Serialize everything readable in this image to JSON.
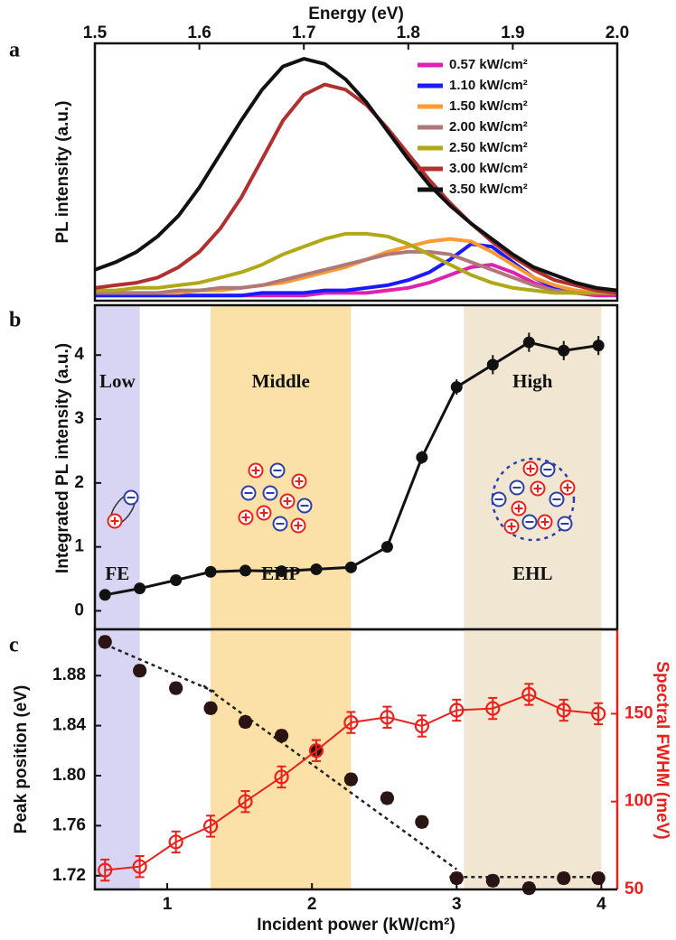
{
  "chart_data": [
    {
      "type": "line",
      "label": "a",
      "xlabel": "Energy (eV)",
      "ylabel": "PL intensity (a.u.)",
      "x": [
        1.5,
        1.52,
        1.54,
        1.56,
        1.58,
        1.6,
        1.62,
        1.64,
        1.66,
        1.68,
        1.7,
        1.72,
        1.74,
        1.76,
        1.78,
        1.8,
        1.82,
        1.84,
        1.86,
        1.88,
        1.9,
        1.92,
        1.94,
        1.96,
        1.98,
        2.0
      ],
      "xlim": [
        1.5,
        2.0
      ],
      "xticks": [
        1.5,
        1.6,
        1.7,
        1.8,
        1.9,
        {
          "value": 2,
          "label": "2.0"
        }
      ],
      "ylim": [
        0,
        1
      ],
      "legend": "upper right",
      "series": [
        {
          "name": "0.57 kW/cm²",
          "color": "#e020b0",
          "values": [
            0.02,
            0.02,
            0.02,
            0.02,
            0.02,
            0.02,
            0.02,
            0.02,
            0.02,
            0.02,
            0.02,
            0.03,
            0.03,
            0.03,
            0.04,
            0.05,
            0.07,
            0.1,
            0.13,
            0.14,
            0.11,
            0.07,
            0.04,
            0.03,
            0.02,
            0.02
          ]
        },
        {
          "name": "1.10 kW/cm²",
          "color": "#1a1aff",
          "values": [
            0.02,
            0.02,
            0.02,
            0.02,
            0.02,
            0.02,
            0.02,
            0.02,
            0.03,
            0.03,
            0.03,
            0.04,
            0.04,
            0.05,
            0.06,
            0.08,
            0.11,
            0.16,
            0.22,
            0.21,
            0.15,
            0.09,
            0.05,
            0.04,
            0.03,
            0.03
          ]
        },
        {
          "name": "1.50 kW/cm²",
          "color": "#ff9a30",
          "values": [
            0.03,
            0.03,
            0.03,
            0.03,
            0.03,
            0.04,
            0.04,
            0.05,
            0.06,
            0.07,
            0.09,
            0.11,
            0.13,
            0.16,
            0.19,
            0.21,
            0.23,
            0.24,
            0.23,
            0.19,
            0.14,
            0.09,
            0.06,
            0.04,
            0.03,
            0.03
          ]
        },
        {
          "name": "2.00 kW/cm²",
          "color": "#b07878",
          "values": [
            0.03,
            0.03,
            0.03,
            0.03,
            0.04,
            0.04,
            0.05,
            0.05,
            0.06,
            0.08,
            0.1,
            0.12,
            0.14,
            0.16,
            0.18,
            0.19,
            0.19,
            0.18,
            0.15,
            0.12,
            0.09,
            0.06,
            0.04,
            0.03,
            0.03,
            0.03
          ]
        },
        {
          "name": "2.50 kW/cm²",
          "color": "#b0a818",
          "values": [
            0.04,
            0.04,
            0.05,
            0.05,
            0.06,
            0.07,
            0.09,
            0.11,
            0.14,
            0.18,
            0.21,
            0.24,
            0.26,
            0.26,
            0.25,
            0.22,
            0.18,
            0.14,
            0.1,
            0.07,
            0.05,
            0.04,
            0.03,
            0.03,
            0.03,
            0.03
          ]
        },
        {
          "name": "3.00 kW/cm²",
          "color": "#b03030",
          "values": [
            0.05,
            0.06,
            0.07,
            0.09,
            0.13,
            0.19,
            0.28,
            0.4,
            0.55,
            0.7,
            0.8,
            0.84,
            0.82,
            0.76,
            0.67,
            0.57,
            0.47,
            0.38,
            0.3,
            0.23,
            0.17,
            0.12,
            0.08,
            0.06,
            0.04,
            0.03
          ]
        },
        {
          "name": "3.50 kW/cm²",
          "color": "#111111",
          "values": [
            0.12,
            0.15,
            0.19,
            0.25,
            0.33,
            0.44,
            0.57,
            0.7,
            0.82,
            0.91,
            0.94,
            0.92,
            0.86,
            0.77,
            0.66,
            0.55,
            0.45,
            0.37,
            0.3,
            0.24,
            0.18,
            0.13,
            0.1,
            0.07,
            0.05,
            0.04
          ]
        }
      ]
    },
    {
      "type": "scatter",
      "label": "b",
      "ylabel": "Integrated PL intensity (a.u.)",
      "color": "#111111",
      "x": [
        0.57,
        0.81,
        1.06,
        1.3,
        1.54,
        1.79,
        2.03,
        2.27,
        2.52,
        2.76,
        3.0,
        3.25,
        3.5,
        3.74,
        3.98
      ],
      "values": [
        0.25,
        0.35,
        0.48,
        0.61,
        0.63,
        0.62,
        0.65,
        0.68,
        1.0,
        2.4,
        3.5,
        3.85,
        4.2,
        4.07,
        4.15
      ],
      "errors": [
        0.05,
        0.05,
        0.05,
        0.05,
        0.05,
        0.05,
        0.05,
        0.05,
        0.06,
        0.1,
        0.12,
        0.15,
        0.15,
        0.15,
        0.15
      ],
      "xlim": [
        0.5,
        4.11
      ],
      "ylim": [
        -0.29,
        4.78
      ],
      "yticks": [
        0,
        1,
        2,
        3,
        4
      ],
      "regions": [
        {
          "label": "Low",
          "range": [
            0.5,
            0.81
          ],
          "color": "#d8d4f4"
        },
        {
          "label": "Middle",
          "range": [
            1.3,
            2.27
          ],
          "color": "#fbe0a8"
        },
        {
          "label": "High",
          "range": [
            3.05,
            4.0
          ],
          "color": "#f1e6d2"
        }
      ],
      "annotations": [
        "FE",
        "EHP",
        "EHL"
      ]
    },
    {
      "type": "dual",
      "label": "c",
      "xlabel": "Incident power (kW/cm²)",
      "ylabel": "Peak position (eV)",
      "y2label": "Spectral FWHM  (meV)",
      "x": [
        0.57,
        0.81,
        1.06,
        1.3,
        1.54,
        1.79,
        2.03,
        2.27,
        2.52,
        2.76,
        3.0,
        3.25,
        3.5,
        3.74,
        3.98
      ],
      "xlim": [
        0.5,
        4.11
      ],
      "xticks": [
        1,
        2,
        3,
        4
      ],
      "ylim": [
        1.709,
        1.917
      ],
      "yticks": [
        1.72,
        1.76,
        {
          "value": 1.8,
          "label": "1.80"
        },
        1.84,
        1.88
      ],
      "y2lim": [
        50,
        198
      ],
      "y2ticks": [
        50,
        100,
        150
      ],
      "series": [
        {
          "color": "#2a1414",
          "marker": "filled",
          "values": [
            1.907,
            1.884,
            1.87,
            1.854,
            1.843,
            1.832,
            1.82,
            1.797,
            1.782,
            1.763,
            1.718,
            1.716,
            1.71,
            1.718,
            1.718
          ],
          "errors": [
            0.004,
            0.004,
            0.004,
            0.004,
            0.004,
            0.004,
            0.004,
            0.004,
            0.004,
            0.004,
            0.004,
            0.004,
            0.004,
            0.004,
            0.004
          ]
        },
        {
          "color": "#e8211c",
          "marker": "open",
          "axis": "y2",
          "values": [
            61,
            63,
            77,
            86,
            100,
            114,
            129,
            145,
            148,
            143,
            152,
            153,
            161,
            152,
            150
          ],
          "errors": [
            6,
            6,
            6,
            6,
            6,
            6,
            6,
            6,
            6,
            6,
            6,
            6,
            6,
            6,
            6
          ]
        }
      ],
      "fits": [
        {
          "x": [
            0.57,
            1.35
          ],
          "values": [
            1.905,
            1.866
          ]
        },
        {
          "x": [
            1.25,
            3.0
          ],
          "values": [
            1.872,
            1.725
          ]
        },
        {
          "x": [
            2.95,
            4.0
          ],
          "values": [
            1.719,
            1.719
          ]
        }
      ]
    }
  ]
}
